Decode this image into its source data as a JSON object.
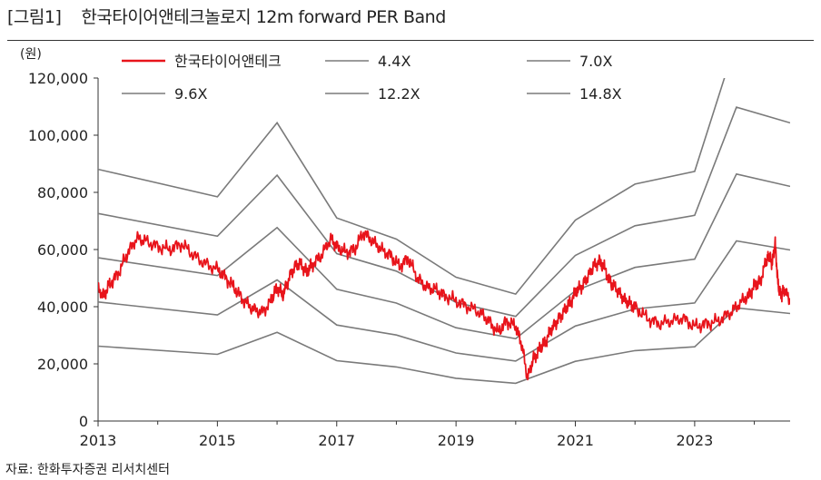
{
  "title_prefix": "[그림1]",
  "title_text": "한국타이어앤테크놀로지 12m forward PER Band",
  "source": "자료: 한화투자증권 리서치센터",
  "chart_data": {
    "type": "line",
    "unit_label": "(원)",
    "x_ticks": [
      "2013",
      "2015",
      "2017",
      "2019",
      "2021",
      "2023"
    ],
    "x_tick_years": [
      2013,
      2015,
      2017,
      2019,
      2021,
      2023
    ],
    "xlim": [
      2013,
      2024.6
    ],
    "ylim": [
      0,
      120000
    ],
    "y_ticks": [
      0,
      20000,
      40000,
      60000,
      80000,
      100000,
      120000
    ],
    "y_tick_labels": [
      "0",
      "20,000",
      "40,000",
      "60,000",
      "80,000",
      "100,000",
      "120,000"
    ],
    "legend": [
      "한국타이어앤테크",
      "4.4X",
      "7.0X",
      "9.6X",
      "12.2X",
      "14.8X"
    ],
    "colors": {
      "price": "#e8141b",
      "band": "#7a7a7a",
      "axis": "#333333"
    },
    "eps_x": [
      2013,
      2015,
      2016,
      2017,
      2018,
      2019,
      2020,
      2021,
      2022,
      2023,
      2023.7,
      2024.6
    ],
    "eps_y": [
      5950,
      5300,
      7050,
      4800,
      4300,
      3400,
      3000,
      4750,
      5600,
      5900,
      9000,
      8550
    ],
    "band_multiples": [
      4.4,
      7.0,
      9.6,
      12.2,
      14.8
    ],
    "series": [
      {
        "name": "한국타이어앤테크",
        "x": [
          2013,
          2013.1,
          2013.2,
          2013.35,
          2013.5,
          2013.65,
          2013.8,
          2014.0,
          2014.2,
          2014.4,
          2014.6,
          2014.8,
          2015.0,
          2015.15,
          2015.3,
          2015.45,
          2015.6,
          2015.75,
          2015.9,
          2016.0,
          2016.1,
          2016.2,
          2016.3,
          2016.4,
          2016.5,
          2016.6,
          2016.75,
          2016.9,
          2017.0,
          2017.15,
          2017.3,
          2017.45,
          2017.6,
          2017.75,
          2017.9,
          2018.05,
          2018.2,
          2018.35,
          2018.5,
          2018.65,
          2018.8,
          2019.0,
          2019.2,
          2019.4,
          2019.55,
          2019.7,
          2019.85,
          2020.0,
          2020.1,
          2020.2,
          2020.3,
          2020.4,
          2020.5,
          2020.6,
          2020.7,
          2020.8,
          2020.9,
          2021.0,
          2021.1,
          2021.2,
          2021.3,
          2021.4,
          2021.5,
          2021.6,
          2021.7,
          2021.8,
          2021.9,
          2022.0,
          2022.2,
          2022.4,
          2022.6,
          2022.8,
          2023.0,
          2023.2,
          2023.4,
          2023.6,
          2023.75,
          2023.9,
          2024.0,
          2024.1,
          2024.2,
          2024.25,
          2024.3,
          2024.35,
          2024.4,
          2024.45,
          2024.5,
          2024.6
        ],
        "y": [
          46000,
          44000,
          48000,
          52000,
          59000,
          64000,
          63000,
          61000,
          60000,
          62000,
          58000,
          55000,
          53000,
          50000,
          46000,
          42000,
          39000,
          38000,
          42000,
          47000,
          44000,
          50000,
          54000,
          55000,
          52000,
          55000,
          58000,
          64000,
          61000,
          59000,
          60000,
          66000,
          63000,
          60000,
          58000,
          54000,
          57000,
          50000,
          47000,
          46000,
          44000,
          42000,
          40000,
          38000,
          35000,
          31000,
          35000,
          33000,
          27000,
          15000,
          22000,
          25000,
          28000,
          32000,
          35000,
          38000,
          41000,
          45000,
          47000,
          50000,
          54000,
          56000,
          53000,
          48000,
          46000,
          43000,
          41000,
          40000,
          36000,
          34000,
          35000,
          36000,
          33000,
          34000,
          35000,
          38000,
          41000,
          44000,
          47000,
          49000,
          56000,
          58000,
          55000,
          62000,
          47000,
          44000,
          46000,
          42000
        ]
      },
      {
        "name": "4.4X"
      },
      {
        "name": "7.0X"
      },
      {
        "name": "9.6X"
      },
      {
        "name": "12.2X"
      },
      {
        "name": "14.8X"
      }
    ]
  }
}
